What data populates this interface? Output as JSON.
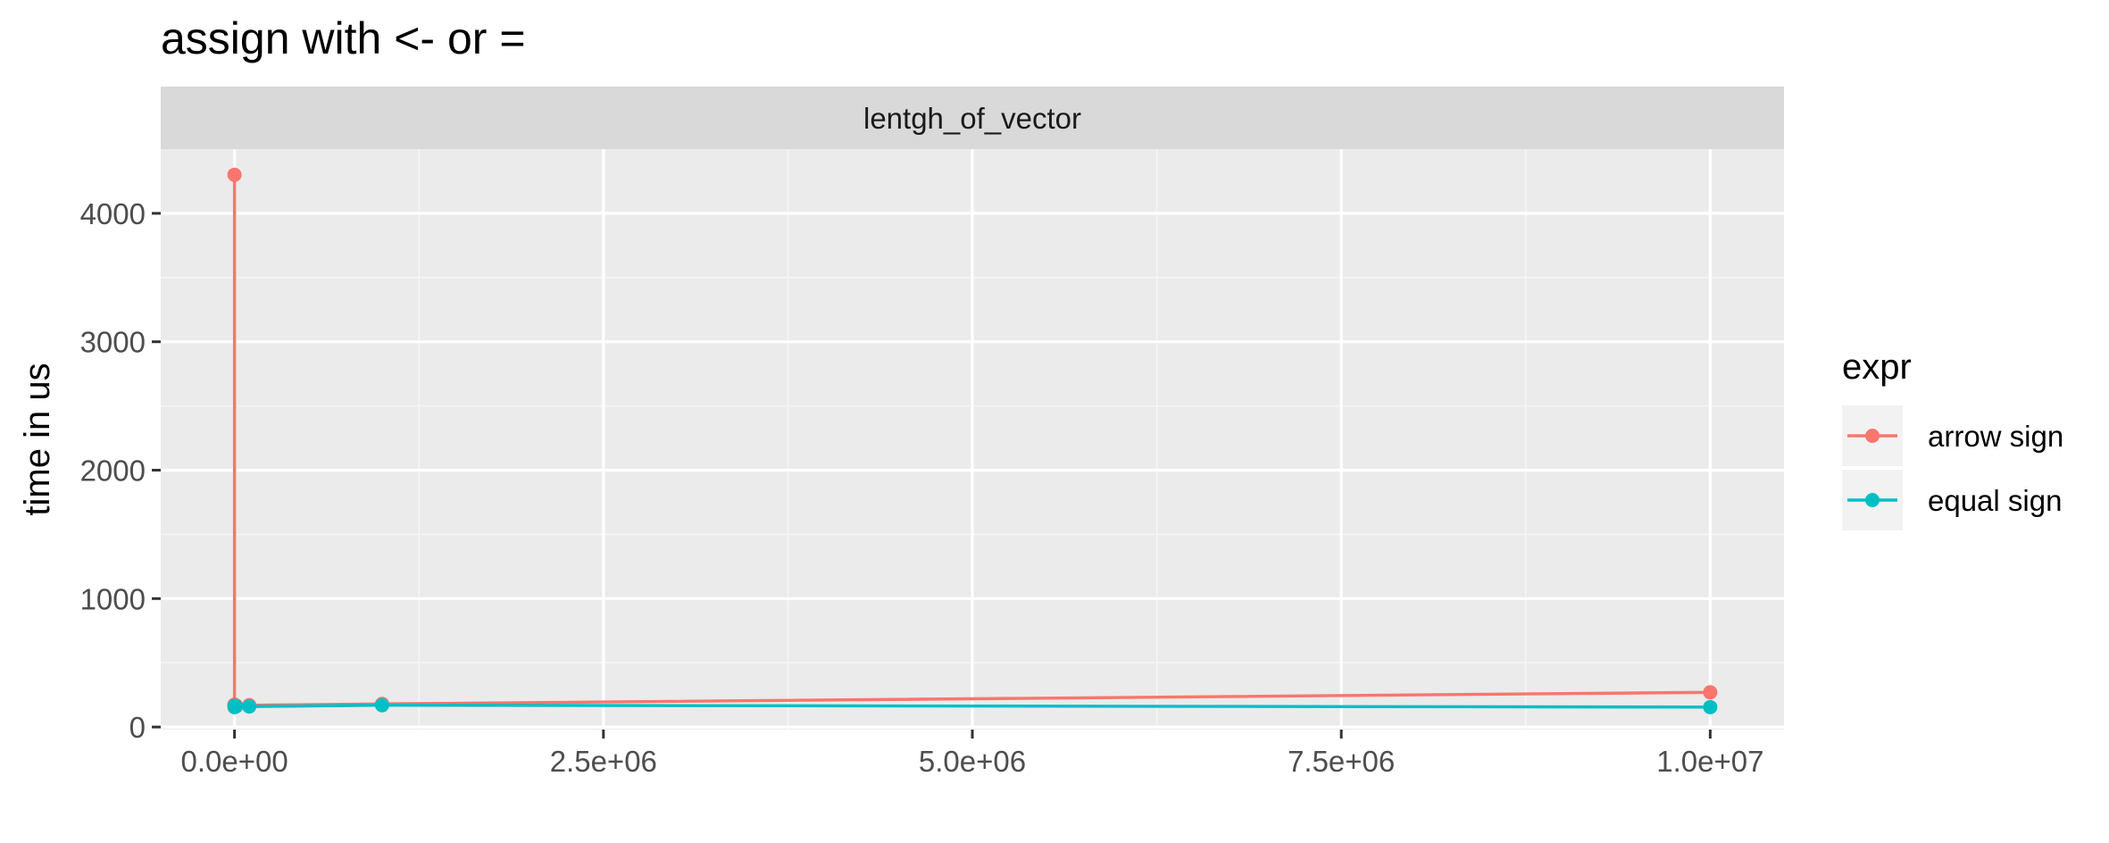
{
  "chart_data": {
    "type": "line",
    "title": "assign with <- or =",
    "facet_label": "lentgh_of_vector",
    "xlabel": "",
    "ylabel": "time in us",
    "xlim": [
      -500000,
      10500000
    ],
    "ylim": [
      -20,
      4500
    ],
    "x_ticks": [
      0,
      2500000,
      5000000,
      7500000,
      10000000
    ],
    "x_tick_labels": [
      "0.0e+00",
      "2.5e+06",
      "5.0e+06",
      "7.5e+06",
      "1.0e+07"
    ],
    "x_minor_ticks": [
      1250000,
      3750000,
      6250000,
      8750000
    ],
    "y_ticks": [
      0,
      1000,
      2000,
      3000,
      4000
    ],
    "y_tick_labels": [
      "0",
      "1000",
      "2000",
      "3000",
      "4000"
    ],
    "y_minor_ticks": [
      500,
      1500,
      2500,
      3500
    ],
    "grid": true,
    "legend": {
      "title": "expr",
      "position": "right"
    },
    "series": [
      {
        "name": "arrow sign",
        "color": "#F8766D",
        "x": [
          1,
          10,
          100,
          1000,
          10000,
          100000,
          1000000,
          10000000
        ],
        "y": [
          4300,
          175,
          170,
          165,
          168,
          170,
          180,
          270
        ]
      },
      {
        "name": "equal sign",
        "color": "#00BFC4",
        "x": [
          1,
          10,
          100,
          1000,
          10000,
          100000,
          1000000,
          10000000
        ],
        "y": [
          165,
          160,
          155,
          158,
          160,
          160,
          170,
          155
        ]
      }
    ]
  }
}
